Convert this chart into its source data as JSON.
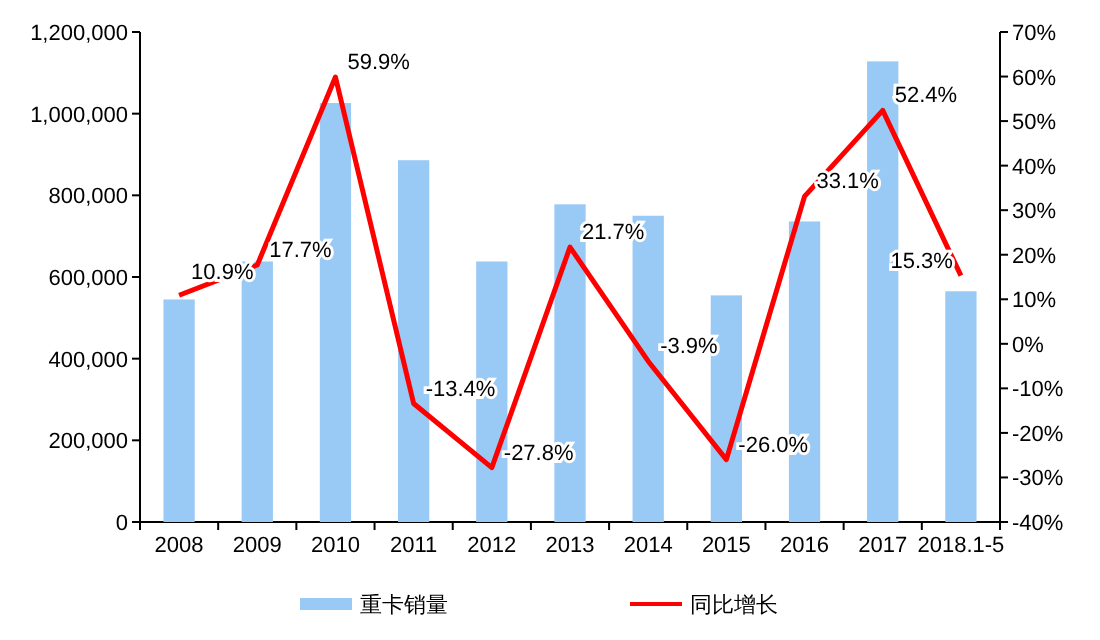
{
  "chart_data": {
    "type": "bar",
    "categories": [
      "2008",
      "2009",
      "2010",
      "2011",
      "2012",
      "2013",
      "2014",
      "2015",
      "2016",
      "2017",
      "2018.1-5"
    ],
    "series": [
      {
        "name": "重卡销量",
        "color": "#99c9f5",
        "values": [
          545000,
          638000,
          1026000,
          886000,
          638000,
          778000,
          750000,
          555000,
          736000,
          1128000,
          565000
        ]
      },
      {
        "name": "同比增长",
        "type": "line",
        "axis": "y2",
        "color": "#ff0000",
        "values": [
          10.9,
          17.7,
          59.9,
          -13.4,
          -27.8,
          21.7,
          -3.9,
          -26.0,
          33.1,
          52.4,
          15.3
        ],
        "value_labels": [
          "10.9%",
          "17.7%",
          "59.9%",
          "-13.4%",
          "-27.8%",
          "21.7%",
          "-3.9%",
          "-26.0%",
          "33.1%",
          "52.4%",
          "15.3%"
        ]
      }
    ],
    "ylim": [
      0,
      1200000
    ],
    "yticks": [
      {
        "value": 0,
        "label": "0"
      },
      {
        "value": 200000,
        "label": "200,000"
      },
      {
        "value": 400000,
        "label": "400,000"
      },
      {
        "value": 600000,
        "label": "600,000"
      },
      {
        "value": 800000,
        "label": "800,000"
      },
      {
        "value": 1000000,
        "label": "1,000,000"
      },
      {
        "value": 1200000,
        "label": "1,200,000"
      }
    ],
    "y2lim": [
      -40,
      70
    ],
    "y2ticks": [
      {
        "value": -40,
        "label": "-40%"
      },
      {
        "value": -30,
        "label": "-30%"
      },
      {
        "value": -20,
        "label": "-20%"
      },
      {
        "value": -10,
        "label": "-10%"
      },
      {
        "value": 0,
        "label": "0%"
      },
      {
        "value": 10,
        "label": "10%"
      },
      {
        "value": 20,
        "label": "20%"
      },
      {
        "value": 30,
        "label": "30%"
      },
      {
        "value": 40,
        "label": "40%"
      },
      {
        "value": 50,
        "label": "50%"
      },
      {
        "value": 60,
        "label": "60%"
      },
      {
        "value": 70,
        "label": "70%"
      }
    ],
    "grid": false,
    "legend": "bottom",
    "marker": "none",
    "line_style": "solid"
  }
}
